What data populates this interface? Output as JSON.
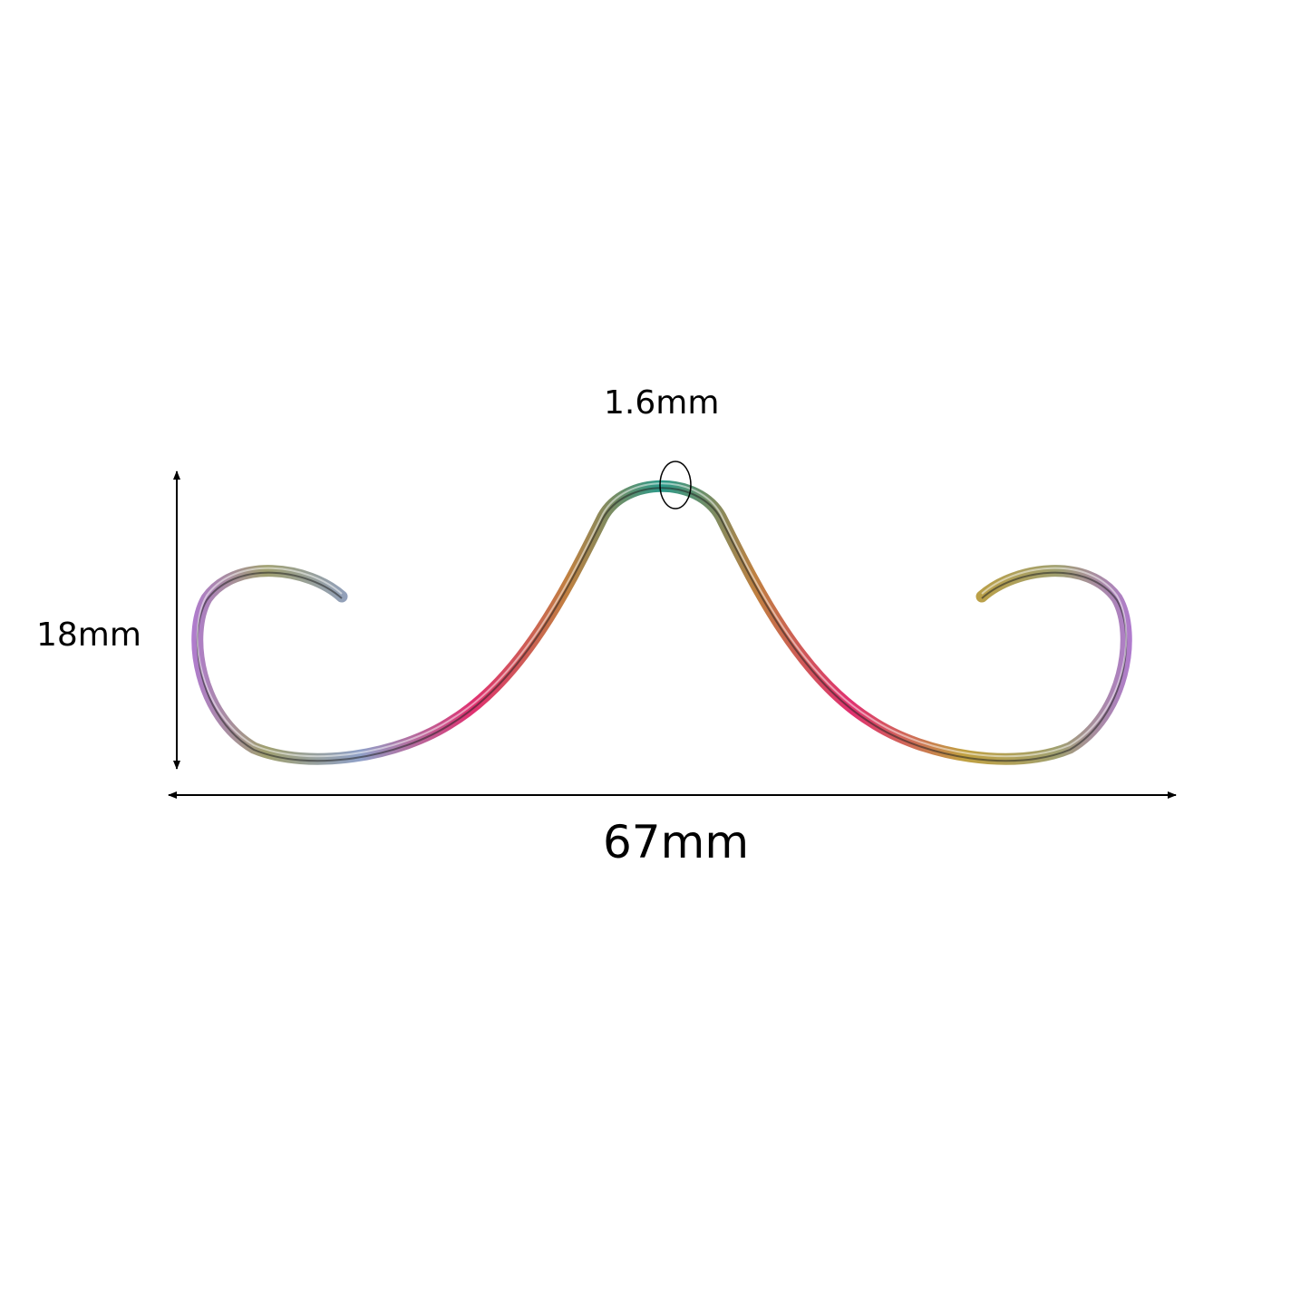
{
  "dimensions": {
    "width_label": "67mm",
    "height_label": "18mm",
    "gauge_label": "1.6mm"
  },
  "product": {
    "shape": "moustache-shaped septum ring",
    "finish_colors": [
      "#b07ad0",
      "#8fa0c8",
      "#a0a070",
      "#e03070",
      "#c08040",
      "#2a9a8a"
    ]
  },
  "icons": {
    "dimension_arrows": "double-headed-arrow"
  }
}
